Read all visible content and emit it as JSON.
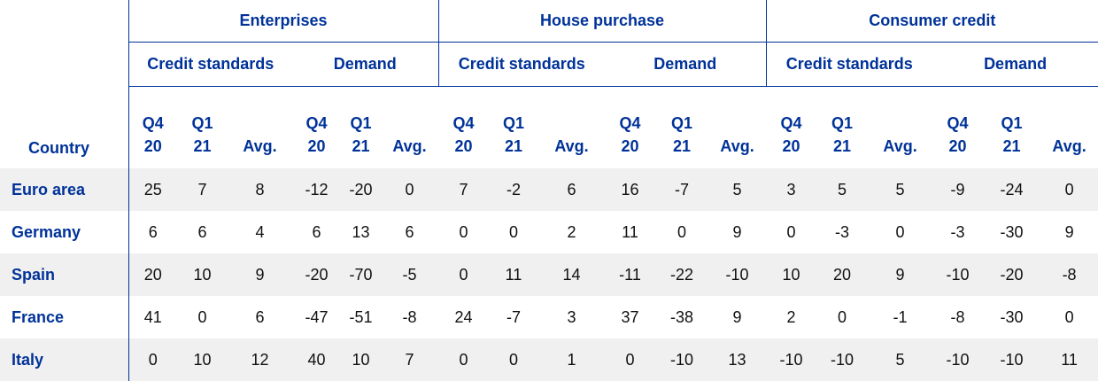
{
  "header": {
    "country": "Country",
    "groups": [
      {
        "title": "Enterprises",
        "subgroups": [
          {
            "title": "Credit standards",
            "columns": [
              "Q4 20",
              "Q1 21",
              "Avg."
            ]
          },
          {
            "title": "Demand",
            "columns": [
              "Q4 20",
              "Q1 21",
              "Avg."
            ]
          }
        ]
      },
      {
        "title": "House purchase",
        "subgroups": [
          {
            "title": "Credit standards",
            "columns": [
              "Q4 20",
              "Q1 21",
              "Avg."
            ]
          },
          {
            "title": "Demand",
            "columns": [
              "Q4 20",
              "Q1 21",
              "Avg."
            ]
          }
        ]
      },
      {
        "title": "Consumer credit",
        "subgroups": [
          {
            "title": "Credit standards",
            "columns": [
              "Q4 20",
              "Q1 21",
              "Avg."
            ]
          },
          {
            "title": "Demand",
            "columns": [
              "Q4 20",
              "Q1 21",
              "Avg."
            ]
          }
        ]
      }
    ]
  },
  "rows": [
    {
      "country": "Euro area",
      "values": [
        25,
        7,
        8,
        -12,
        -20,
        0,
        7,
        -2,
        6,
        16,
        -7,
        5,
        3,
        5,
        5,
        -9,
        -24,
        0
      ]
    },
    {
      "country": "Germany",
      "values": [
        6,
        6,
        4,
        6,
        13,
        6,
        0,
        0,
        2,
        11,
        0,
        9,
        0,
        -3,
        0,
        -3,
        -30,
        9
      ]
    },
    {
      "country": "Spain",
      "values": [
        20,
        10,
        9,
        -20,
        -70,
        -5,
        0,
        11,
        14,
        -11,
        -22,
        -10,
        10,
        20,
        9,
        -10,
        -20,
        -8
      ]
    },
    {
      "country": "France",
      "values": [
        41,
        0,
        6,
        -47,
        -51,
        -8,
        24,
        -7,
        3,
        37,
        -38,
        9,
        2,
        0,
        -1,
        -8,
        -30,
        0
      ]
    },
    {
      "country": "Italy",
      "values": [
        0,
        10,
        12,
        40,
        10,
        7,
        0,
        0,
        1,
        0,
        -10,
        13,
        -10,
        -10,
        5,
        -10,
        -10,
        11
      ]
    }
  ]
}
